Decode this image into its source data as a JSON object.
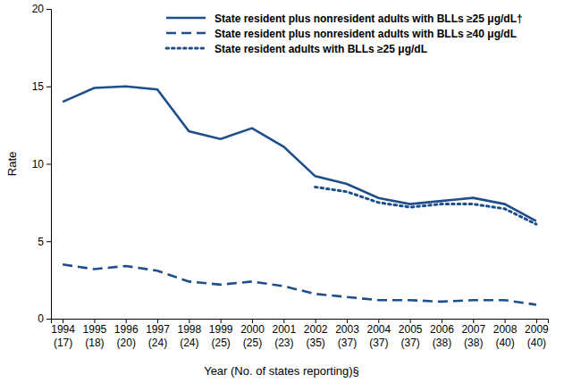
{
  "chart_data": {
    "type": "line",
    "x_label": "Year (No. of states reporting)§",
    "y_label": "Rate",
    "categories": [
      "1994\n(17)",
      "1995\n(18)",
      "1996\n(20)",
      "1997\n(24)",
      "1998\n(24)",
      "1999\n(25)",
      "2000\n(25)",
      "2001\n(23)",
      "2002\n(35)",
      "2003\n(37)",
      "2004\n(37)",
      "2005\n(37)",
      "2006\n(38)",
      "2007\n(38)",
      "2008\n(40)",
      "2009\n(40)"
    ],
    "series": [
      {
        "name": "State resident plus nonresident adults with BLLs ≥25 μg/dL†",
        "color": "#1f4f8b",
        "line_style": "solid",
        "values": [
          14.0,
          14.9,
          15.0,
          14.8,
          12.1,
          11.6,
          12.3,
          11.1,
          9.2,
          8.7,
          7.8,
          7.4,
          7.6,
          7.8,
          7.4,
          6.3
        ]
      },
      {
        "name": "State resident plus nonresident adults with BLLs ≥40 μg/dL",
        "color": "#1f4f8b",
        "line_style": "dashed",
        "values": [
          3.5,
          3.2,
          3.4,
          3.1,
          2.4,
          2.2,
          2.4,
          2.1,
          1.6,
          1.4,
          1.2,
          1.2,
          1.1,
          1.2,
          1.2,
          0.9
        ]
      },
      {
        "name": "State resident adults with BLLs ≥25 μg/dL",
        "color": "#1f4f8b",
        "line_style": "dotted",
        "values": [
          null,
          null,
          null,
          null,
          null,
          null,
          null,
          null,
          8.5,
          8.2,
          7.5,
          7.2,
          7.4,
          7.4,
          7.1,
          6.1
        ]
      }
    ],
    "ylim": [
      0,
      20
    ],
    "yticks": [
      0,
      5,
      10,
      15,
      20
    ],
    "grid": false,
    "legend": "top"
  }
}
